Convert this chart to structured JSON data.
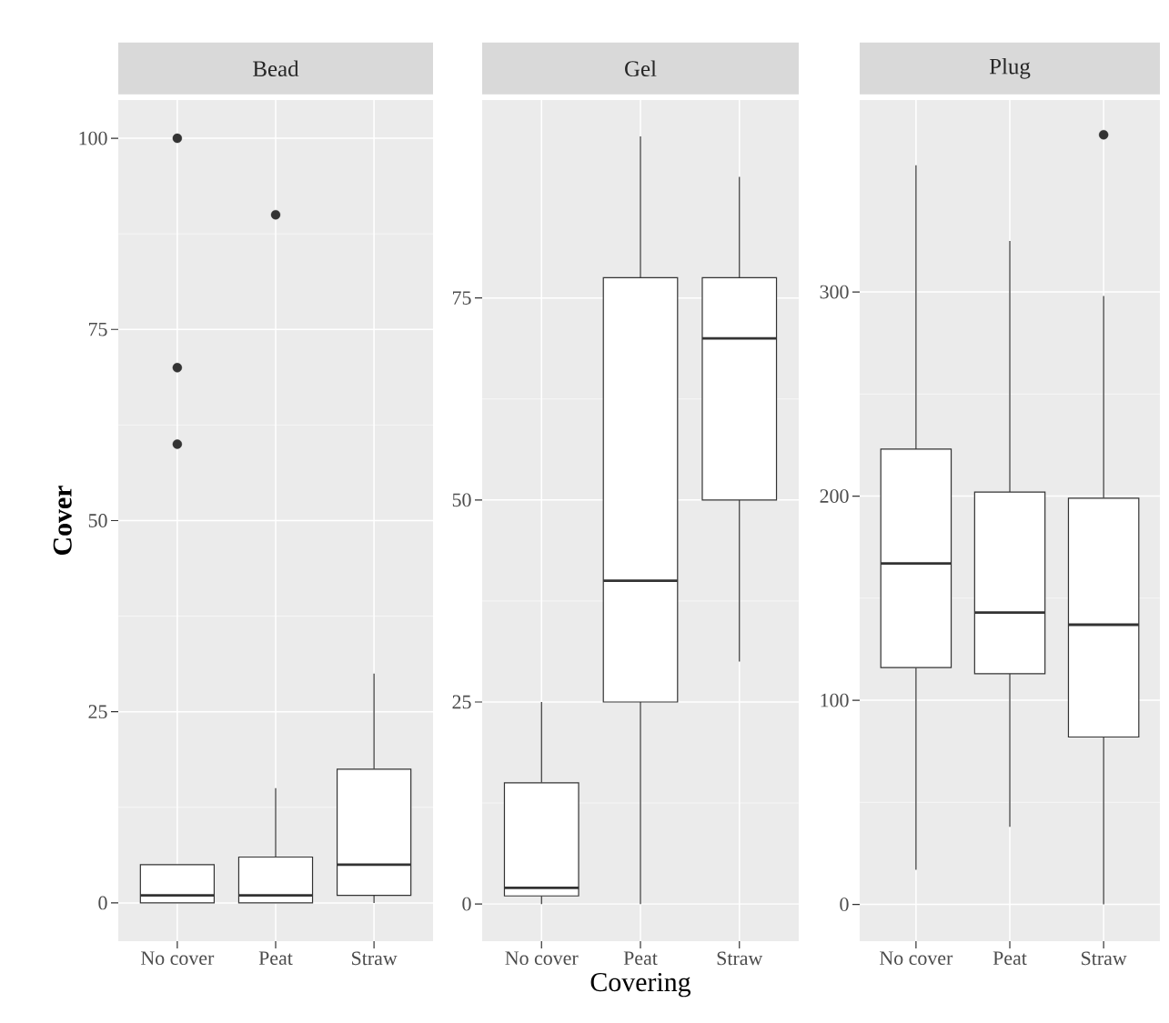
{
  "chart_data": [
    {
      "type": "box",
      "title": "Bead",
      "ylabel": "Cover",
      "categories": [
        "No cover",
        "Peat",
        "Straw"
      ],
      "boxes": [
        {
          "low": 0,
          "q1": 0,
          "median": 1,
          "q3": 5,
          "high": 5,
          "outliers": [
            60,
            70,
            100
          ]
        },
        {
          "low": 0,
          "q1": 0,
          "median": 1,
          "q3": 6,
          "high": 15,
          "outliers": [
            90
          ]
        },
        {
          "low": 0,
          "q1": 1,
          "median": 5,
          "q3": 17.5,
          "high": 30
        }
      ],
      "ylim": [
        -5,
        105
      ],
      "yticks": [
        0,
        25,
        50,
        75,
        100
      ],
      "grid": true
    },
    {
      "type": "box",
      "title": "Gel",
      "xlabel": "Covering",
      "categories": [
        "No cover",
        "Peat",
        "Straw"
      ],
      "boxes": [
        {
          "low": 0,
          "q1": 1,
          "median": 2,
          "q3": 15,
          "high": 25
        },
        {
          "low": 0,
          "q1": 25,
          "median": 40,
          "q3": 77.5,
          "high": 95
        },
        {
          "low": 30,
          "q1": 50,
          "median": 70,
          "q3": 77.5,
          "high": 90
        }
      ],
      "ylim": [
        -4.6,
        99.5
      ],
      "yticks": [
        0,
        25,
        50,
        75
      ],
      "grid": true
    },
    {
      "type": "box",
      "title": "Plug",
      "categories": [
        "No cover",
        "Peat",
        "Straw"
      ],
      "boxes": [
        {
          "low": 17,
          "q1": 116,
          "median": 167,
          "q3": 223,
          "high": 362
        },
        {
          "low": 38,
          "q1": 113,
          "median": 143,
          "q3": 202,
          "high": 325
        },
        {
          "low": 0,
          "q1": 82,
          "median": 137,
          "q3": 199,
          "high": 298,
          "outliers": [
            377
          ]
        }
      ],
      "ylim": [
        -18,
        394
      ],
      "yticks": [
        0,
        100,
        200,
        300
      ],
      "grid": true
    }
  ]
}
